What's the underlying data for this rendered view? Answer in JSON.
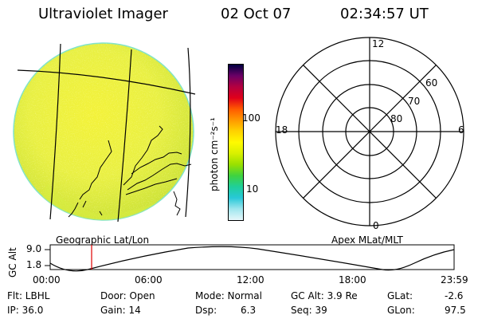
{
  "header": {
    "title": "Ultraviolet Imager",
    "date": "02 Oct 07",
    "time": "02:34:57 UT"
  },
  "image_panel": {
    "caption": "Geographic Lat/Lon"
  },
  "colorbar": {
    "unit_label": "photon cm⁻²s⁻¹",
    "ticks": [
      "100",
      "10"
    ],
    "colors": [
      "#000040",
      "#6a0066",
      "#b30040",
      "#e0001a",
      "#ff5a00",
      "#ff9900",
      "#ffd200",
      "#fffa00",
      "#d8f000",
      "#99e000",
      "#3fd23f",
      "#1fcf9a",
      "#28c8d8",
      "#9fe6ee",
      "#e6f7fa"
    ]
  },
  "polar_plot": {
    "caption": "Apex MLat/MLT",
    "mlt_labels": {
      "top": "12",
      "left": "18",
      "right": "6",
      "bottom": "0"
    },
    "lat_labels": [
      "60",
      "70",
      "80"
    ]
  },
  "altitude_plot": {
    "ylabel": "GC Alt",
    "yticks": [
      "9.0",
      "1.8"
    ],
    "xticks": [
      "00:00",
      "06:00",
      "12:00",
      "18:00",
      "23:59"
    ],
    "marker_time": "02:35"
  },
  "info": {
    "filter": "Flt: LBHL",
    "ip": "IP: 36.0",
    "door": "Door: Open",
    "gain": "Gain: 14",
    "mode": "Mode: Normal",
    "dsp_label": "Dsp:",
    "dsp_value": "6.3",
    "gc_alt": "GC Alt: 3.9 Re",
    "seq": "Seq: 39",
    "glat_label": "GLat:",
    "glat_value": "-2.6",
    "glon_label": "GLon:",
    "glon_value": "97.5"
  }
}
